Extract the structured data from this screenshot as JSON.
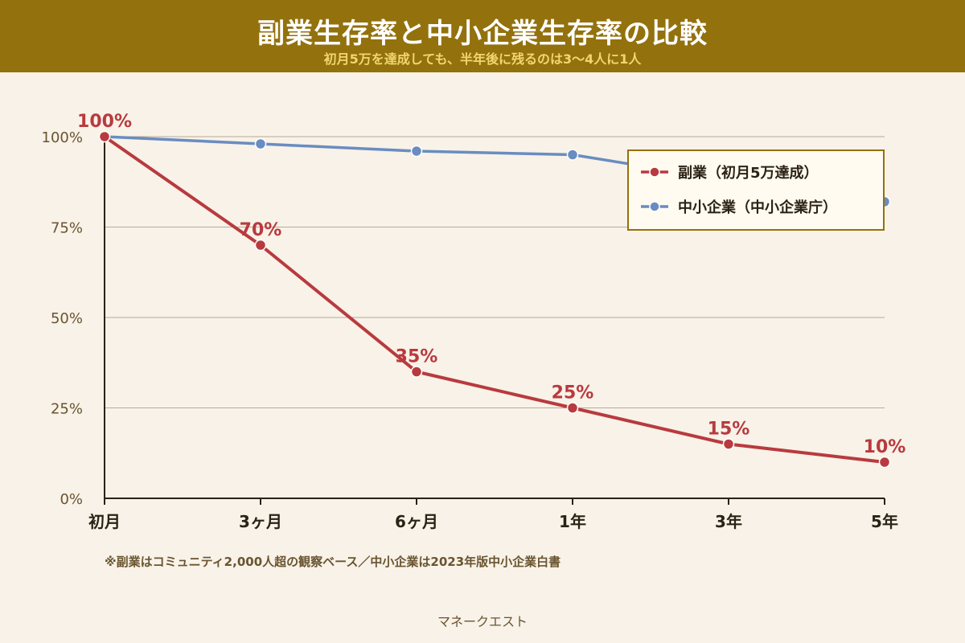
{
  "header": {
    "title": "副業生存率と中小企業生存率の比較",
    "subtitle": "初月5万を達成しても、半年後に残るのは3〜4人に1人"
  },
  "footnote": "※副業はコミュニティ2,000人超の観察ベース／中小企業は2023年版中小企業白書",
  "brand": "マネークエスト",
  "chart_data": {
    "type": "line",
    "categories": [
      "初月",
      "3ヶ月",
      "6ヶ月",
      "1年",
      "3年",
      "5年"
    ],
    "y_ticks": [
      0,
      25,
      50,
      75,
      100
    ],
    "y_tick_labels": [
      "0%",
      "25%",
      "50%",
      "75%",
      "100%"
    ],
    "ylim": [
      0,
      100
    ],
    "grid": true,
    "legend_position": "top-right",
    "series": [
      {
        "name": "副業（初月5万達成）",
        "color": "#b83a3f",
        "values": [
          100,
          70,
          35,
          25,
          15,
          10
        ],
        "data_labels": [
          "100%",
          "70%",
          "35%",
          "25%",
          "15%",
          "10%"
        ]
      },
      {
        "name": "中小企業（中小企業庁）",
        "color": "#6a8cc0",
        "values": [
          100,
          98,
          96,
          95,
          88,
          82
        ]
      }
    ]
  }
}
